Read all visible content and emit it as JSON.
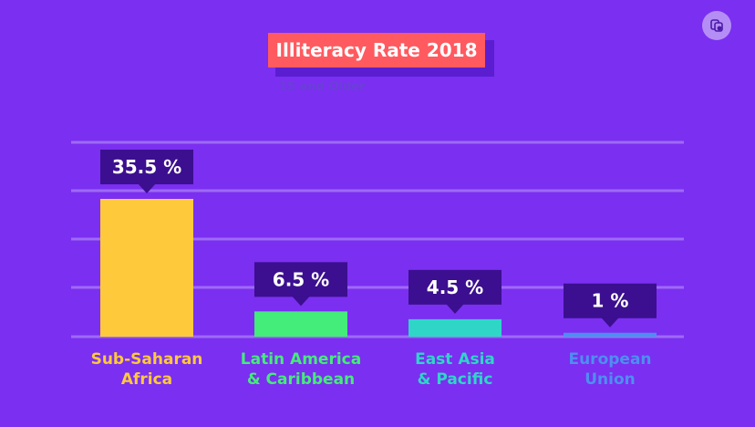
{
  "chart_data": {
    "type": "bar",
    "title": "Illiteracy Rate 2018",
    "subtitle": "15 and Older",
    "categories": [
      [
        "Sub-Saharan",
        "Africa"
      ],
      [
        "Latin America",
        "& Caribbean"
      ],
      [
        "East Asia",
        "& Pacific"
      ],
      [
        "European",
        "Union"
      ]
    ],
    "values": [
      35.5,
      6.5,
      4.5,
      1
    ],
    "value_labels": [
      "35.5 %",
      "6.5 %",
      "4.5 %",
      "1 %"
    ],
    "bar_colors": [
      "#ffc93c",
      "#44ec7a",
      "#2fd6c8",
      "#4d8ff0"
    ],
    "label_colors": [
      "#ffc93c",
      "#44ec7a",
      "#2fd6c8",
      "#4d8ff0"
    ],
    "ylim": [
      0,
      40
    ],
    "grid": true
  },
  "colors": {
    "background": "#7b2ff0",
    "gridline": "#9d6bf5",
    "callout": "#3b0f8f",
    "title_bg": "#ff5a5f",
    "title_shadow": "#5a1ed0",
    "subtitle": "#6b3fd8"
  },
  "corner_icon": "copy-icon"
}
